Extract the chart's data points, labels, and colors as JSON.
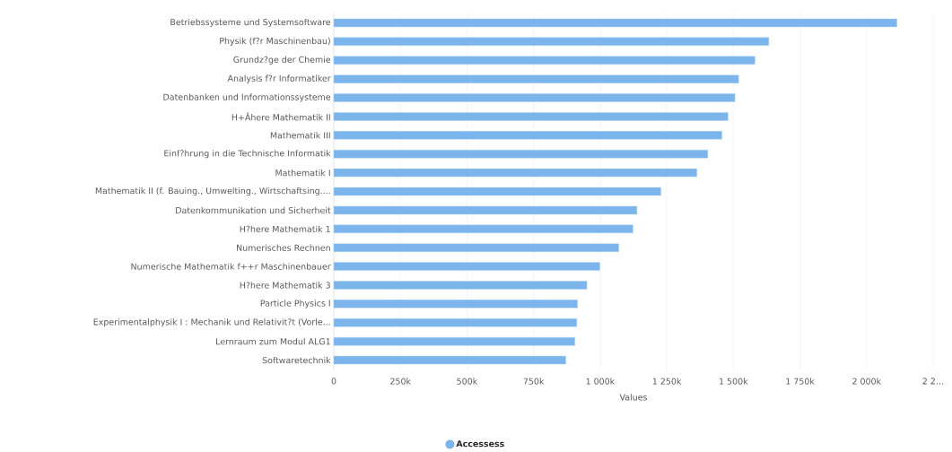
{
  "chart_data": {
    "type": "bar",
    "orientation": "horizontal",
    "xlabel": "Values",
    "categories": [
      "Betriebssysteme und Systemsoftware",
      "Physik (f?r Maschinenbau)",
      "Grundz?ge der Chemie",
      "Analysis f?r Informatiker",
      "Datenbanken und Informationssysteme",
      "H+Âhere Mathematik II",
      "Mathematik III",
      "Einf?hrung in die Technische Informatik",
      "Mathematik I",
      "Mathematik II (f. Bauing., Umwelting., Wirtschaftsing....",
      "Datenkommunikation und Sicherheit",
      "H?here Mathematik 1",
      "Numerisches Rechnen",
      "Numerische Mathematik f++r Maschinenbauer",
      "H?here Mathematik 3",
      "Particle Physics I",
      "Experimentalphysik I : Mechanik und Relativit?t (Vorle...",
      "Lernraum zum Modul ALG1",
      "Softwaretechnik"
    ],
    "series": [
      {
        "name": "Accessess",
        "color": "#7cb5ec",
        "values": [
          2114000,
          1633000,
          1581000,
          1520000,
          1506000,
          1480000,
          1457000,
          1404000,
          1363000,
          1228000,
          1138000,
          1123000,
          1070000,
          999000,
          950000,
          915000,
          912000,
          905000,
          871000
        ]
      }
    ],
    "xlim": [
      0,
      2250000
    ],
    "xticks": [
      0,
      {
        "value": 250000,
        "label": "250k"
      },
      {
        "value": 500000,
        "label": "500k"
      },
      {
        "value": 750000,
        "label": "750k"
      },
      {
        "value": 1000000,
        "label": "1 000k"
      },
      {
        "value": 1250000,
        "label": "1 250k"
      },
      {
        "value": 1500000,
        "label": "1 500k"
      },
      {
        "value": 1750000,
        "label": "1 750k"
      },
      {
        "value": 2000000,
        "label": "2 000k"
      },
      {
        "value": 2250000,
        "label": "2 2…"
      }
    ],
    "grid": "x",
    "legend": "bottom"
  }
}
